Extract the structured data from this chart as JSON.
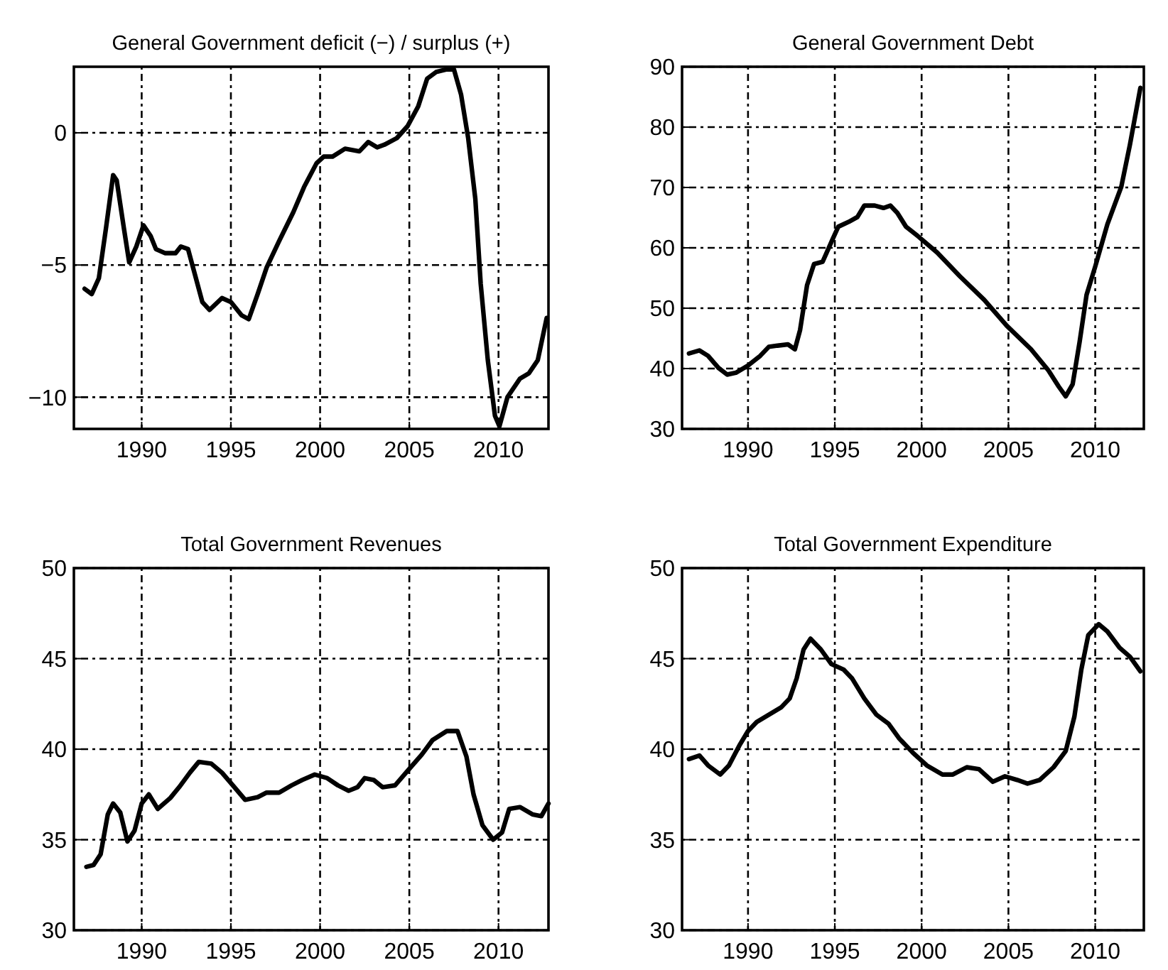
{
  "chart_data": [
    {
      "type": "line",
      "title": "General Government deficit (−) / surplus (+)",
      "color": "#000000",
      "grid": true,
      "xlim": [
        1986.2,
        2012.8
      ],
      "xticks": [
        1990,
        1995,
        2000,
        2005,
        2010
      ],
      "ylim": [
        -11.2,
        2.5
      ],
      "yticks": [
        {
          "value": -10,
          "label": "−10"
        },
        {
          "value": -5,
          "label": "−5"
        },
        0
      ],
      "x": [
        1986.8,
        1987.2,
        1987.6,
        1988.0,
        1988.4,
        1988.6,
        1989.0,
        1989.3,
        1989.7,
        1990.1,
        1990.5,
        1990.8,
        1991.3,
        1991.9,
        1992.2,
        1992.6,
        1993.0,
        1993.4,
        1993.8,
        1994.5,
        1995.0,
        1995.6,
        1996.0,
        1996.5,
        1997.0,
        1997.7,
        1998.5,
        1999.1,
        1999.8,
        2000.2,
        2000.7,
        2001.4,
        2002.2,
        2002.7,
        2003.2,
        2003.6,
        2004.3,
        2004.9,
        2005.5,
        2006.0,
        2006.5,
        2007.1,
        2007.5,
        2007.9,
        2008.3,
        2008.7,
        2009.0,
        2009.4,
        2009.8,
        2010.05,
        2010.5,
        2011.2,
        2011.7,
        2012.2,
        2012.7
      ],
      "values": [
        -5.9,
        -6.1,
        -5.5,
        -3.6,
        -1.6,
        -1.8,
        -3.6,
        -4.9,
        -4.3,
        -3.5,
        -3.9,
        -4.4,
        -4.55,
        -4.55,
        -4.3,
        -4.4,
        -5.4,
        -6.4,
        -6.7,
        -6.25,
        -6.4,
        -6.9,
        -7.05,
        -6.1,
        -5.1,
        -4.1,
        -3.0,
        -2.05,
        -1.15,
        -0.9,
        -0.9,
        -0.6,
        -0.7,
        -0.35,
        -0.55,
        -0.45,
        -0.2,
        0.25,
        1.0,
        2.05,
        2.3,
        2.4,
        2.4,
        1.45,
        -0.2,
        -2.5,
        -5.7,
        -8.6,
        -10.7,
        -11.1,
        -10.0,
        -9.3,
        -9.1,
        -8.6,
        -7.0
      ]
    },
    {
      "type": "line",
      "title": "General Government Debt",
      "color": "#000000",
      "grid": true,
      "xlim": [
        1986.2,
        2012.8
      ],
      "xticks": [
        1990,
        1995,
        2000,
        2005,
        2010
      ],
      "ylim": [
        30,
        90
      ],
      "yticks": [
        30,
        40,
        50,
        60,
        70,
        80,
        90
      ],
      "x": [
        1986.6,
        1987.2,
        1987.7,
        1988.3,
        1988.8,
        1989.3,
        1990.0,
        1990.7,
        1991.2,
        1991.7,
        1992.3,
        1992.7,
        1993.0,
        1993.4,
        1993.8,
        1994.3,
        1994.9,
        1995.2,
        1995.8,
        1996.3,
        1996.7,
        1997.3,
        1997.8,
        1998.2,
        1998.6,
        1999.1,
        1999.8,
        2000.9,
        2002.2,
        2003.6,
        2004.9,
        2006.3,
        2007.3,
        2007.9,
        2008.3,
        2008.7,
        2009.1,
        2009.5,
        2010.0,
        2010.7,
        2011.5,
        2012.0,
        2012.6
      ],
      "values": [
        42.5,
        43.0,
        42.1,
        40.1,
        39.0,
        39.3,
        40.5,
        42.1,
        43.6,
        43.8,
        44.0,
        43.2,
        46.4,
        53.8,
        57.3,
        57.7,
        61.6,
        63.5,
        64.3,
        65.1,
        67.0,
        67.0,
        66.6,
        67.0,
        65.8,
        63.5,
        61.9,
        59.2,
        55.3,
        51.4,
        47.1,
        43.2,
        39.7,
        37.0,
        35.4,
        37.4,
        44.4,
        52.2,
        56.9,
        63.9,
        70.1,
        77.1,
        86.5
      ]
    },
    {
      "type": "line",
      "title": "Total Government Revenues",
      "color": "#000000",
      "grid": true,
      "xlim": [
        1986.2,
        2012.8
      ],
      "xticks": [
        1990,
        1995,
        2000,
        2005,
        2010
      ],
      "ylim": [
        30,
        50
      ],
      "yticks": [
        30,
        35,
        40,
        45,
        50
      ],
      "x": [
        1986.9,
        1987.3,
        1987.7,
        1988.1,
        1988.4,
        1988.8,
        1989.2,
        1989.6,
        1990.0,
        1990.4,
        1990.9,
        1991.6,
        1992.1,
        1992.7,
        1993.2,
        1993.9,
        1994.5,
        1995.2,
        1995.8,
        1996.5,
        1997.0,
        1997.7,
        1998.4,
        1999.0,
        1999.7,
        2000.4,
        2001.0,
        2001.6,
        2002.1,
        2002.5,
        2003.0,
        2003.5,
        2004.2,
        2004.9,
        2005.7,
        2006.3,
        2007.1,
        2007.7,
        2008.2,
        2008.6,
        2009.1,
        2009.7,
        2010.2,
        2010.6,
        2011.2,
        2011.9,
        2012.4,
        2012.8
      ],
      "values": [
        33.5,
        33.6,
        34.2,
        36.4,
        37.0,
        36.5,
        34.9,
        35.5,
        37.0,
        37.5,
        36.7,
        37.3,
        37.9,
        38.7,
        39.3,
        39.2,
        38.7,
        37.9,
        37.2,
        37.35,
        37.6,
        37.6,
        38.0,
        38.3,
        38.6,
        38.4,
        38.0,
        37.7,
        37.9,
        38.4,
        38.3,
        37.9,
        38.0,
        38.8,
        39.7,
        40.5,
        41.0,
        41.0,
        39.6,
        37.5,
        35.8,
        35.0,
        35.4,
        36.7,
        36.8,
        36.4,
        36.3,
        37.0
      ]
    },
    {
      "type": "line",
      "title": "Total Government Expenditure",
      "color": "#000000",
      "grid": true,
      "xlim": [
        1986.2,
        2012.8
      ],
      "xticks": [
        1990,
        1995,
        2000,
        2005,
        2010
      ],
      "ylim": [
        30,
        50
      ],
      "yticks": [
        30,
        35,
        40,
        45,
        50
      ],
      "x": [
        1986.6,
        1987.2,
        1987.7,
        1988.4,
        1988.9,
        1989.5,
        1990.0,
        1990.5,
        1991.2,
        1991.9,
        1992.4,
        1992.8,
        1993.2,
        1993.6,
        1994.2,
        1994.8,
        1995.5,
        1996.0,
        1996.7,
        1997.4,
        1998.1,
        1998.7,
        1999.5,
        2000.3,
        2001.2,
        2001.8,
        2002.6,
        2003.3,
        2004.1,
        2004.8,
        2005.5,
        2006.1,
        2006.8,
        2007.6,
        2008.3,
        2008.8,
        2009.2,
        2009.6,
        2010.2,
        2010.7,
        2011.4,
        2012.0,
        2012.6
      ],
      "values": [
        39.45,
        39.65,
        39.1,
        38.6,
        39.1,
        40.2,
        41.0,
        41.5,
        41.9,
        42.3,
        42.8,
        43.9,
        45.5,
        46.1,
        45.5,
        44.7,
        44.4,
        43.9,
        42.8,
        41.9,
        41.4,
        40.6,
        39.8,
        39.1,
        38.6,
        38.6,
        39.0,
        38.9,
        38.2,
        38.5,
        38.3,
        38.1,
        38.3,
        39.0,
        39.9,
        41.8,
        44.4,
        46.3,
        46.9,
        46.5,
        45.6,
        45.1,
        44.3
      ]
    }
  ]
}
